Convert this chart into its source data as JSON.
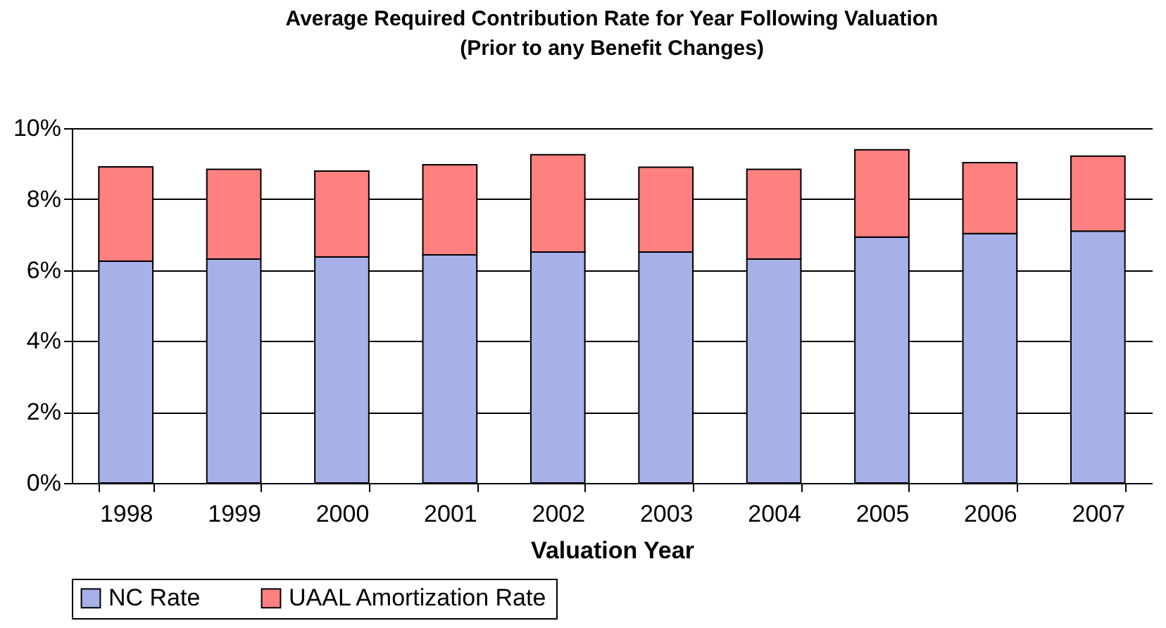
{
  "chart_data": {
    "type": "bar",
    "title": "Average Required Contribution Rate for Year Following Valuation",
    "subtitle": "(Prior to any Benefit Changes)",
    "xlabel": "Valuation Year",
    "categories": [
      "1998",
      "1999",
      "2000",
      "2001",
      "2002",
      "2003",
      "2004",
      "2005",
      "2006",
      "2007"
    ],
    "stacked": true,
    "series": [
      {
        "name": "NC Rate",
        "color": "#a8b0e8",
        "values": [
          6.25,
          6.31,
          6.37,
          6.43,
          6.51,
          6.51,
          6.31,
          6.93,
          7.03,
          7.1
        ]
      },
      {
        "name": "UAAL Amortization Rate",
        "color": "#ff8080",
        "values": [
          2.66,
          2.53,
          2.42,
          2.54,
          2.74,
          2.39,
          2.53,
          2.46,
          2.0,
          2.11
        ]
      }
    ],
    "ylim": [
      0,
      10
    ],
    "yticks": [
      {
        "value": 0,
        "label": "0%"
      },
      {
        "value": 2,
        "label": "2%"
      },
      {
        "value": 4,
        "label": "4%"
      },
      {
        "value": 6,
        "label": "6%"
      },
      {
        "value": 8,
        "label": "8%"
      },
      {
        "value": 10,
        "label": "10%"
      }
    ],
    "grid": "y",
    "legend": "bottom"
  }
}
